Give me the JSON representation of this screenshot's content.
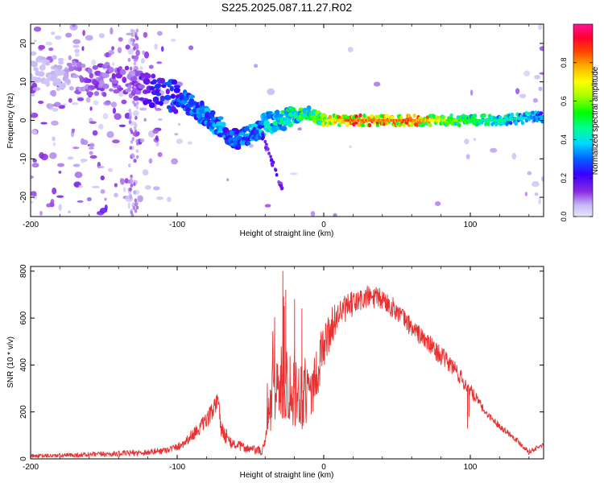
{
  "title": "S225.2025.087.11.27.R02",
  "chart_data": [
    {
      "type": "heatmap",
      "xlabel": "Height of straight line (km)",
      "ylabel": "Frequency (Hz)",
      "xlim": [
        -200,
        150
      ],
      "ylim": [
        -25,
        25
      ],
      "xticks": [
        -200,
        -100,
        0,
        100
      ],
      "yticks": [
        -20,
        -10,
        0,
        10,
        20
      ],
      "grid": false,
      "colorbar": {
        "label": "Normalized spectral amplitude",
        "ticks": [
          0.0,
          0.2,
          0.4,
          0.6,
          0.8
        ],
        "tick_labels": [
          "0.0",
          "0.2",
          "0.4",
          "0.6",
          "0.8"
        ],
        "range": [
          0,
          1
        ],
        "colormap": "rainbow (violet-blue-cyan-green-yellow-orange-red-magenta)"
      },
      "ridge": {
        "x": [
          -200,
          -180,
          -160,
          -140,
          -130,
          -120,
          -110,
          -100,
          -90,
          -80,
          -70,
          -60,
          -50,
          -40,
          -30,
          -20,
          -10,
          0,
          20,
          40,
          60,
          80,
          100,
          120,
          150
        ],
        "freq": [
          14,
          12,
          10,
          11,
          9,
          8,
          7,
          6,
          4,
          1,
          -2,
          -5,
          -4,
          -1,
          0,
          1,
          2,
          0,
          0,
          0,
          0,
          0,
          0,
          0,
          1
        ],
        "amplitude": [
          0.05,
          0.06,
          0.12,
          0.13,
          0.12,
          0.2,
          0.25,
          0.3,
          0.32,
          0.33,
          0.35,
          0.3,
          0.35,
          0.4,
          0.45,
          0.5,
          0.55,
          0.65,
          0.85,
          0.8,
          0.85,
          0.65,
          0.5,
          0.45,
          0.35
        ]
      }
    },
    {
      "type": "line",
      "xlabel": "Height of straight line (km)",
      "ylabel": "SNR (10 * v/v)",
      "xlim": [
        -200,
        150
      ],
      "ylim": [
        0,
        820
      ],
      "xticks": [
        -200,
        -100,
        0,
        100
      ],
      "yticks": [
        0,
        200,
        400,
        600,
        800
      ],
      "grid": false,
      "color": "#e83030",
      "envelope": {
        "x": [
          -200,
          -180,
          -160,
          -140,
          -120,
          -110,
          -100,
          -95,
          -90,
          -85,
          -80,
          -75,
          -72,
          -70,
          -65,
          -60,
          -55,
          -50,
          -45,
          -42,
          -40,
          -37,
          -35,
          -33,
          -30,
          -25,
          -20,
          -15,
          -10,
          -5,
          0,
          5,
          10,
          20,
          30,
          40,
          50,
          60,
          70,
          80,
          90,
          95,
          100,
          105,
          110,
          120,
          130,
          135,
          140,
          145,
          150
        ],
        "y": [
          12,
          14,
          18,
          22,
          28,
          35,
          50,
          70,
          100,
          130,
          160,
          210,
          250,
          130,
          70,
          60,
          50,
          40,
          35,
          30,
          80,
          200,
          260,
          300,
          320,
          320,
          300,
          280,
          290,
          360,
          480,
          560,
          620,
          660,
          690,
          680,
          630,
          560,
          500,
          440,
          380,
          330,
          290,
          250,
          200,
          140,
          90,
          60,
          30,
          45,
          60
        ]
      },
      "noise": {
        "x": [
          -200,
          -100,
          -75,
          -60,
          -40,
          -35,
          -20,
          -10,
          0,
          10,
          30,
          60,
          90,
          100,
          110,
          150
        ],
        "y": [
          8,
          15,
          40,
          20,
          20,
          150,
          170,
          140,
          100,
          60,
          50,
          40,
          40,
          30,
          15,
          10
        ]
      },
      "spikes": {
        "x": [
          -28,
          -27,
          -26,
          -27.5,
          -20,
          -15,
          99,
          98
        ],
        "y": [
          800,
          650,
          720,
          690,
          680,
          640,
          180,
          130
        ]
      }
    }
  ]
}
